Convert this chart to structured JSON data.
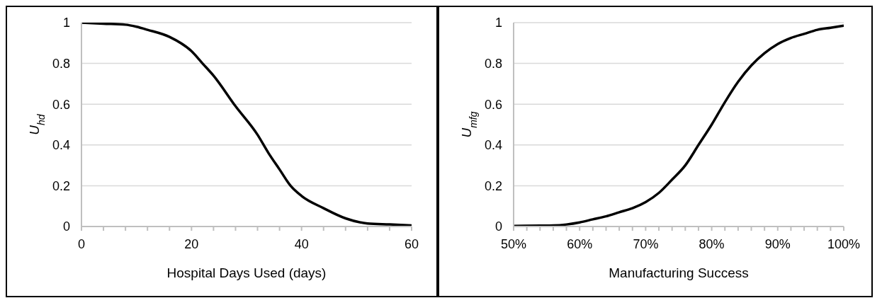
{
  "chart_data": [
    {
      "type": "line",
      "xlabel": "Hospital Days Used (days)",
      "ylabel": "U$_{hd}$",
      "x": [
        0,
        4,
        8,
        10,
        12,
        16,
        20,
        22,
        24,
        28,
        32,
        34,
        36,
        38,
        40,
        44,
        48,
        52,
        56,
        60
      ],
      "series": [
        {
          "color": "#000000",
          "values": [
            1,
            0.995,
            0.99,
            0.98,
            0.965,
            0.93,
            0.86,
            0.8,
            0.74,
            0.59,
            0.45,
            0.36,
            0.28,
            0.2,
            0.15,
            0.09,
            0.04,
            0.015,
            0.01,
            0.005
          ]
        }
      ],
      "xlim": [
        0,
        60
      ],
      "xticks": [
        0,
        {
          "value": 4,
          "label": null
        },
        {
          "value": 8,
          "label": null
        },
        {
          "value": 12,
          "label": null
        },
        {
          "value": 16,
          "label": null
        },
        20,
        {
          "value": 24,
          "label": null
        },
        {
          "value": 28,
          "label": null
        },
        {
          "value": 32,
          "label": null
        },
        {
          "value": 36,
          "label": null
        },
        40,
        {
          "value": 44,
          "label": null
        },
        {
          "value": 48,
          "label": null
        },
        {
          "value": 52,
          "label": null
        },
        {
          "value": 56,
          "label": null
        },
        60
      ],
      "ylim": [
        0,
        1
      ],
      "yticks": [
        0,
        0.2,
        0.4,
        0.6,
        0.8,
        1
      ],
      "grid": "y",
      "marker": "none",
      "line_style": "solid"
    },
    {
      "type": "line",
      "xlabel": "Manufacturing Success",
      "ylabel": "U$_{mfg}$",
      "x": [
        50,
        54,
        56,
        58,
        60,
        62,
        64,
        66,
        68,
        70,
        72,
        74,
        76,
        78,
        80,
        82,
        84,
        86,
        88,
        90,
        92,
        94,
        96,
        98,
        100
      ],
      "series": [
        {
          "color": "#000000",
          "values": [
            0.003,
            0.004,
            0.005,
            0.01,
            0.02,
            0.035,
            0.05,
            0.07,
            0.09,
            0.12,
            0.165,
            0.23,
            0.3,
            0.4,
            0.5,
            0.61,
            0.71,
            0.79,
            0.85,
            0.895,
            0.925,
            0.945,
            0.965,
            0.975,
            0.985
          ]
        }
      ],
      "xlim": [
        50,
        100
      ],
      "xticks": [
        {
          "value": 50,
          "label": "50%"
        },
        {
          "value": 52,
          "label": null
        },
        {
          "value": 54,
          "label": null
        },
        {
          "value": 56,
          "label": null
        },
        {
          "value": 58,
          "label": null
        },
        {
          "value": 60,
          "label": "60%"
        },
        {
          "value": 62,
          "label": null
        },
        {
          "value": 64,
          "label": null
        },
        {
          "value": 66,
          "label": null
        },
        {
          "value": 68,
          "label": null
        },
        {
          "value": 70,
          "label": "70%"
        },
        {
          "value": 72,
          "label": null
        },
        {
          "value": 74,
          "label": null
        },
        {
          "value": 76,
          "label": null
        },
        {
          "value": 78,
          "label": null
        },
        {
          "value": 80,
          "label": "80%"
        },
        {
          "value": 82,
          "label": null
        },
        {
          "value": 84,
          "label": null
        },
        {
          "value": 86,
          "label": null
        },
        {
          "value": 88,
          "label": null
        },
        {
          "value": 90,
          "label": "90%"
        },
        {
          "value": 92,
          "label": null
        },
        {
          "value": 94,
          "label": null
        },
        {
          "value": 96,
          "label": null
        },
        {
          "value": 98,
          "label": null
        },
        {
          "value": 100,
          "label": "100%"
        }
      ],
      "ylim": [
        0,
        1
      ],
      "yticks": [
        0,
        0.2,
        0.4,
        0.6,
        0.8,
        1
      ],
      "grid": "y",
      "marker": "none",
      "line_style": "solid"
    }
  ]
}
